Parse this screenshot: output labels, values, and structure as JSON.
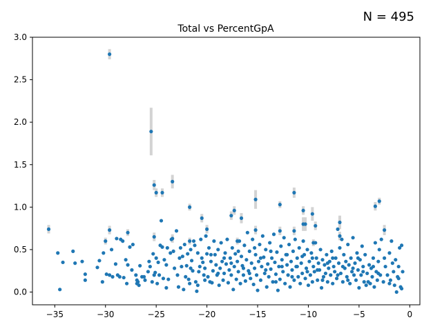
{
  "chart_data": {
    "type": "scatter",
    "title": "Total vs PercentGpA",
    "annotation": "N = 495",
    "xlabel": "",
    "ylabel": "",
    "xlim": [
      -37.2,
      1.0
    ],
    "ylim": [
      -0.15,
      3.0
    ],
    "x_ticks": [
      -35,
      -30,
      -25,
      -20,
      -15,
      -10,
      -5,
      0
    ],
    "x_tick_labels": [
      "−35",
      "−30",
      "−25",
      "−20",
      "−15",
      "−10",
      "−5",
      "0"
    ],
    "y_ticks": [
      0.0,
      0.5,
      1.0,
      1.5,
      2.0,
      2.5,
      3.0
    ],
    "y_tick_labels": [
      "0.0",
      "0.5",
      "1.0",
      "1.5",
      "2.0",
      "2.5",
      "3.0"
    ],
    "grid": false,
    "point_color": "#1f77b4",
    "errorbar_color": "#d3d3d3",
    "points_with_error": [
      {
        "x": -35.6,
        "y": 0.74,
        "err": 0.05
      },
      {
        "x": -30.0,
        "y": 0.6,
        "err": 0.04
      },
      {
        "x": -29.6,
        "y": 2.8,
        "err": 0.06
      },
      {
        "x": -29.6,
        "y": 0.73,
        "err": 0.05
      },
      {
        "x": -27.8,
        "y": 0.7,
        "err": 0.04
      },
      {
        "x": -25.5,
        "y": 1.89,
        "err": 0.28
      },
      {
        "x": -25.2,
        "y": 1.26,
        "err": 0.06
      },
      {
        "x": -25.2,
        "y": 0.65,
        "err": 0.05
      },
      {
        "x": -25.0,
        "y": 1.17,
        "err": 0.05
      },
      {
        "x": -24.4,
        "y": 1.17,
        "err": 0.05
      },
      {
        "x": -23.4,
        "y": 1.3,
        "err": 0.08
      },
      {
        "x": -23.4,
        "y": 0.63,
        "err": 0.05
      },
      {
        "x": -21.7,
        "y": 1.0,
        "err": 0.04
      },
      {
        "x": -21.7,
        "y": 0.6,
        "err": 0.04
      },
      {
        "x": -20.5,
        "y": 0.87,
        "err": 0.05
      },
      {
        "x": -20.0,
        "y": 0.74,
        "err": 0.05
      },
      {
        "x": -17.6,
        "y": 0.9,
        "err": 0.05
      },
      {
        "x": -17.3,
        "y": 0.96,
        "err": 0.05
      },
      {
        "x": -17.0,
        "y": 0.6,
        "err": 0.04
      },
      {
        "x": -16.6,
        "y": 0.87,
        "err": 0.06
      },
      {
        "x": -15.2,
        "y": 1.09,
        "err": 0.11
      },
      {
        "x": -15.2,
        "y": 0.73,
        "err": 0.05
      },
      {
        "x": -12.8,
        "y": 1.03,
        "err": 0.04
      },
      {
        "x": -12.8,
        "y": 0.72,
        "err": 0.05
      },
      {
        "x": -11.4,
        "y": 1.17,
        "err": 0.06
      },
      {
        "x": -11.4,
        "y": 0.72,
        "err": 0.05
      },
      {
        "x": -10.5,
        "y": 0.96,
        "err": 0.05
      },
      {
        "x": -10.5,
        "y": 0.8,
        "err": 0.08
      },
      {
        "x": -10.3,
        "y": 0.8,
        "err": 0.08
      },
      {
        "x": -9.6,
        "y": 0.92,
        "err": 0.08
      },
      {
        "x": -9.5,
        "y": 0.58,
        "err": 0.04
      },
      {
        "x": -9.3,
        "y": 0.78,
        "err": 0.05
      },
      {
        "x": -6.9,
        "y": 0.82,
        "err": 0.08
      },
      {
        "x": -6.9,
        "y": 0.66,
        "err": 0.05
      },
      {
        "x": -3.4,
        "y": 1.01,
        "err": 0.05
      },
      {
        "x": -3.0,
        "y": 1.07,
        "err": 0.04
      },
      {
        "x": -2.5,
        "y": 0.73,
        "err": 0.06
      }
    ],
    "points": [
      [
        -34.7,
        0.46
      ],
      [
        -34.5,
        0.03
      ],
      [
        -34.2,
        0.35
      ],
      [
        -33.2,
        0.48
      ],
      [
        -33.0,
        0.34
      ],
      [
        -32.3,
        0.36
      ],
      [
        -32.0,
        0.21
      ],
      [
        -32.0,
        0.14
      ],
      [
        -30.8,
        0.29
      ],
      [
        -30.6,
        0.37
      ],
      [
        -30.3,
        0.12
      ],
      [
        -30.2,
        0.46
      ],
      [
        -29.9,
        0.21
      ],
      [
        -29.6,
        0.2
      ],
      [
        -29.4,
        0.5
      ],
      [
        -29.0,
        0.33
      ],
      [
        -28.9,
        0.63
      ],
      [
        -28.8,
        0.2
      ],
      [
        -28.6,
        0.18
      ],
      [
        -28.3,
        0.6
      ],
      [
        -28.2,
        0.17
      ],
      [
        -28.0,
        0.38
      ],
      [
        -27.9,
        0.1
      ],
      [
        -27.8,
        0.32
      ],
      [
        -27.6,
        0.53
      ],
      [
        -27.3,
        0.56
      ],
      [
        -27.0,
        0.2
      ],
      [
        -26.9,
        0.14
      ],
      [
        -26.8,
        0.12
      ],
      [
        -26.7,
        0.08
      ],
      [
        -26.6,
        0.31
      ],
      [
        -26.4,
        0.18
      ],
      [
        -26.2,
        0.18
      ],
      [
        -26.1,
        0.14
      ],
      [
        -25.7,
        0.36
      ],
      [
        -25.6,
        0.3
      ],
      [
        -25.4,
        0.12
      ],
      [
        -25.3,
        0.45
      ],
      [
        -25.2,
        0.2
      ],
      [
        -25.1,
        0.23
      ],
      [
        -25.0,
        0.4
      ],
      [
        -24.9,
        0.1
      ],
      [
        -24.8,
        0.35
      ],
      [
        -24.7,
        0.2
      ],
      [
        -24.6,
        0.55
      ],
      [
        -24.5,
        0.84
      ],
      [
        -24.4,
        0.53
      ],
      [
        -24.2,
        0.38
      ],
      [
        -24.0,
        0.32
      ],
      [
        -24.0,
        0.05
      ],
      [
        -23.8,
        0.15
      ],
      [
        -23.6,
        0.46
      ],
      [
        -23.5,
        0.62
      ],
      [
        -23.3,
        0.48
      ],
      [
        -23.2,
        0.28
      ],
      [
        -23.0,
        0.72
      ],
      [
        -22.9,
        0.2
      ],
      [
        -22.8,
        0.06
      ],
      [
        -22.6,
        0.52
      ],
      [
        -22.5,
        0.3
      ],
      [
        -22.4,
        0.42
      ],
      [
        -22.3,
        0.03
      ],
      [
        -22.2,
        0.56
      ],
      [
        -22.0,
        0.31
      ],
      [
        -21.9,
        0.45
      ],
      [
        -21.8,
        0.15
      ],
      [
        -21.7,
        0.1
      ],
      [
        -21.6,
        0.5
      ],
      [
        -21.5,
        0.37
      ],
      [
        -21.4,
        0.25
      ],
      [
        -21.3,
        0.6
      ],
      [
        -21.2,
        0.55
      ],
      [
        -21.1,
        0.12
      ],
      [
        -21.0,
        0.01
      ],
      [
        -20.9,
        0.46
      ],
      [
        -20.8,
        0.24
      ],
      [
        -20.7,
        0.3
      ],
      [
        -20.6,
        0.62
      ],
      [
        -20.5,
        0.4
      ],
      [
        -20.4,
        0.35
      ],
      [
        -20.3,
        0.2
      ],
      [
        -20.2,
        0.14
      ],
      [
        -20.1,
        0.66
      ],
      [
        -20.0,
        0.45
      ],
      [
        -19.9,
        0.18
      ],
      [
        -19.8,
        0.52
      ],
      [
        -19.7,
        0.12
      ],
      [
        -19.6,
        0.36
      ],
      [
        -19.5,
        0.11
      ],
      [
        -19.4,
        0.25
      ],
      [
        -19.3,
        0.6
      ],
      [
        -19.2,
        0.44
      ],
      [
        -19.1,
        0.32
      ],
      [
        -19.0,
        0.2
      ],
      [
        -18.9,
        0.5
      ],
      [
        -18.8,
        0.08
      ],
      [
        -18.7,
        0.28
      ],
      [
        -18.6,
        0.58
      ],
      [
        -18.5,
        0.36
      ],
      [
        -18.4,
        0.14
      ],
      [
        -18.3,
        0.22
      ],
      [
        -18.2,
        0.46
      ],
      [
        -18.1,
        0.33
      ],
      [
        -18.0,
        0.62
      ],
      [
        -17.9,
        0.11
      ],
      [
        -17.8,
        0.26
      ],
      [
        -17.7,
        0.4
      ],
      [
        -17.6,
        0.2
      ],
      [
        -17.5,
        0.52
      ],
      [
        -17.4,
        0.03
      ],
      [
        -17.3,
        0.3
      ],
      [
        -17.2,
        0.45
      ],
      [
        -17.1,
        0.15
      ],
      [
        -17.0,
        0.36
      ],
      [
        -16.9,
        0.24
      ],
      [
        -16.8,
        0.6
      ],
      [
        -16.7,
        0.1
      ],
      [
        -16.6,
        0.42
      ],
      [
        -16.5,
        0.31
      ],
      [
        -16.4,
        0.2
      ],
      [
        -16.3,
        0.55
      ],
      [
        -16.2,
        0.13
      ],
      [
        -16.1,
        0.38
      ],
      [
        -16.0,
        0.7
      ],
      [
        -15.9,
        0.25
      ],
      [
        -15.8,
        0.48
      ],
      [
        -15.7,
        0.16
      ],
      [
        -15.6,
        0.34
      ],
      [
        -15.5,
        0.62
      ],
      [
        -15.4,
        0.09
      ],
      [
        -15.3,
        0.28
      ],
      [
        -15.2,
        0.44
      ],
      [
        -15.1,
        0.2
      ],
      [
        -15.0,
        0.02
      ],
      [
        -14.9,
        0.36
      ],
      [
        -14.8,
        0.56
      ],
      [
        -14.7,
        0.14
      ],
      [
        -14.6,
        0.3
      ],
      [
        -14.5,
        0.66
      ],
      [
        -14.4,
        0.41
      ],
      [
        -14.3,
        0.22
      ],
      [
        -14.2,
        0.5
      ],
      [
        -14.1,
        0.06
      ],
      [
        -14.0,
        0.33
      ],
      [
        -13.9,
        0.18
      ],
      [
        -13.8,
        0.58
      ],
      [
        -13.7,
        0.27
      ],
      [
        -13.6,
        0.4
      ],
      [
        -13.5,
        0.12
      ],
      [
        -13.4,
        0.68
      ],
      [
        -13.3,
        0.35
      ],
      [
        -13.2,
        0.21
      ],
      [
        -13.1,
        0.47
      ],
      [
        -13.0,
        0.02
      ],
      [
        -12.9,
        0.3
      ],
      [
        -12.8,
        0.15
      ],
      [
        -12.7,
        0.54
      ],
      [
        -12.6,
        0.38
      ],
      [
        -12.5,
        0.24
      ],
      [
        -12.4,
        0.64
      ],
      [
        -12.3,
        0.1
      ],
      [
        -12.2,
        0.44
      ],
      [
        -12.1,
        0.32
      ],
      [
        -12.0,
        0.2
      ],
      [
        -11.9,
        0.56
      ],
      [
        -11.8,
        0.06
      ],
      [
        -11.7,
        0.36
      ],
      [
        -11.6,
        0.26
      ],
      [
        -11.5,
        0.48
      ],
      [
        -11.4,
        0.14
      ],
      [
        -11.3,
        0.62
      ],
      [
        -11.2,
        0.3
      ],
      [
        -11.1,
        0.4
      ],
      [
        -11.0,
        0.18
      ],
      [
        -10.9,
        0.52
      ],
      [
        -10.8,
        0.1
      ],
      [
        -10.7,
        0.34
      ],
      [
        -10.6,
        0.22
      ],
      [
        -10.5,
        0.6
      ],
      [
        -10.4,
        0.44
      ],
      [
        -10.3,
        0.16
      ],
      [
        -10.2,
        0.28
      ],
      [
        -10.1,
        0.5
      ],
      [
        -10.0,
        0.08
      ],
      [
        -9.9,
        0.36
      ],
      [
        -9.8,
        0.2
      ],
      [
        -9.7,
        0.46
      ],
      [
        -9.6,
        0.12
      ],
      [
        -9.5,
        0.3
      ],
      [
        -9.4,
        0.24
      ],
      [
        -9.3,
        0.58
      ],
      [
        -9.2,
        0.4
      ],
      [
        -9.1,
        0.14
      ],
      [
        -9.0,
        0.34
      ],
      [
        -8.9,
        0.26
      ],
      [
        -8.8,
        0.5
      ],
      [
        -8.7,
        0.05
      ],
      [
        -8.6,
        0.38
      ],
      [
        -8.5,
        0.18
      ],
      [
        -8.4,
        0.32
      ],
      [
        -8.3,
        0.22
      ],
      [
        -8.2,
        0.44
      ],
      [
        -8.1,
        0.12
      ],
      [
        -8.0,
        0.28
      ],
      [
        -7.9,
        0.36
      ],
      [
        -7.8,
        0.2
      ],
      [
        -7.7,
        0.48
      ],
      [
        -7.6,
        0.1
      ],
      [
        -7.5,
        0.3
      ],
      [
        -7.4,
        0.24
      ],
      [
        -7.3,
        0.4
      ],
      [
        -7.2,
        0.16
      ],
      [
        -7.1,
        0.74
      ],
      [
        -7.0,
        0.34
      ],
      [
        -6.9,
        0.52
      ],
      [
        -6.8,
        0.22
      ],
      [
        -6.7,
        0.62
      ],
      [
        -6.6,
        0.12
      ],
      [
        -6.5,
        0.44
      ],
      [
        -6.4,
        0.28
      ],
      [
        -6.3,
        0.36
      ],
      [
        -6.2,
        0.18
      ],
      [
        -6.1,
        0.56
      ],
      [
        -6.0,
        0.32
      ],
      [
        -5.9,
        0.1
      ],
      [
        -5.8,
        0.4
      ],
      [
        -5.7,
        0.24
      ],
      [
        -5.6,
        0.64
      ],
      [
        -5.5,
        0.2
      ],
      [
        -5.4,
        0.34
      ],
      [
        -5.3,
        0.14
      ],
      [
        -5.2,
        0.46
      ],
      [
        -5.1,
        0.26
      ],
      [
        -5.0,
        0.05
      ],
      [
        -4.9,
        0.38
      ],
      [
        -4.8,
        0.2
      ],
      [
        -4.7,
        0.54
      ],
      [
        -4.6,
        0.3
      ],
      [
        -4.5,
        0.12
      ],
      [
        -4.4,
        0.44
      ],
      [
        -4.3,
        0.08
      ],
      [
        -4.2,
        0.22
      ],
      [
        -4.0,
        0.32
      ],
      [
        -3.9,
        0.1
      ],
      [
        -3.8,
        0.28
      ],
      [
        -3.7,
        0.18
      ],
      [
        -3.6,
        0.4
      ],
      [
        -3.5,
        0.06
      ],
      [
        -3.4,
        0.58
      ],
      [
        -3.3,
        0.24
      ],
      [
        -3.2,
        0.14
      ],
      [
        -3.1,
        0.36
      ],
      [
        -3.0,
        0.5
      ],
      [
        -2.9,
        0.2
      ],
      [
        -2.8,
        0.62
      ],
      [
        -2.6,
        0.12
      ],
      [
        -2.4,
        0.3
      ],
      [
        -2.2,
        0.2
      ],
      [
        -2.0,
        0.46
      ],
      [
        -1.9,
        0.14
      ],
      [
        -1.8,
        0.6
      ],
      [
        -1.6,
        0.24
      ],
      [
        -1.5,
        0.08
      ],
      [
        -1.4,
        0.38
      ],
      [
        -1.3,
        0.0
      ],
      [
        -1.2,
        0.18
      ],
      [
        -1.1,
        0.3
      ],
      [
        -1.0,
        0.52
      ],
      [
        -0.9,
        0.06
      ],
      [
        -0.8,
        0.55
      ],
      [
        -0.8,
        0.04
      ],
      [
        -0.7,
        0.24
      ],
      [
        -29.3,
        0.18
      ],
      [
        -28.5,
        0.62
      ],
      [
        -27.4,
        0.26
      ],
      [
        -26.9,
        0.1
      ],
      [
        -25.8,
        0.24
      ],
      [
        -24.3,
        0.16
      ],
      [
        -23.9,
        0.52
      ],
      [
        -22.7,
        0.4
      ],
      [
        -22.1,
        0.18
      ],
      [
        -21.6,
        0.28
      ],
      [
        -20.9,
        0.08
      ],
      [
        -20.2,
        0.28
      ],
      [
        -19.6,
        0.44
      ],
      [
        -18.9,
        0.22
      ],
      [
        -18.3,
        0.4
      ],
      [
        -17.6,
        0.34
      ],
      [
        -16.9,
        0.48
      ],
      [
        -16.4,
        0.28
      ],
      [
        -15.8,
        0.22
      ],
      [
        -15.3,
        0.52
      ],
      [
        -14.7,
        0.4
      ],
      [
        -14.2,
        0.26
      ],
      [
        -13.7,
        0.48
      ],
      [
        -13.2,
        0.12
      ],
      [
        -12.6,
        0.3
      ],
      [
        -12.1,
        0.44
      ],
      [
        -11.6,
        0.18
      ],
      [
        -11.1,
        0.3
      ],
      [
        -10.6,
        0.42
      ],
      [
        -10.1,
        0.24
      ],
      [
        -9.6,
        0.4
      ],
      [
        -9.1,
        0.26
      ],
      [
        -8.6,
        0.14
      ],
      [
        -8.1,
        0.34
      ],
      [
        -7.6,
        0.4
      ],
      [
        -7.1,
        0.2
      ],
      [
        -6.6,
        0.3
      ],
      [
        -6.1,
        0.14
      ],
      [
        -5.6,
        0.28
      ],
      [
        -5.1,
        0.4
      ],
      [
        -4.6,
        0.24
      ],
      [
        -4.1,
        0.12
      ],
      [
        -3.6,
        0.3
      ],
      [
        -3.1,
        0.22
      ],
      [
        -2.5,
        0.4
      ],
      [
        -2.0,
        0.1
      ],
      [
        -1.7,
        0.34
      ],
      [
        -1.1,
        0.16
      ]
    ]
  }
}
